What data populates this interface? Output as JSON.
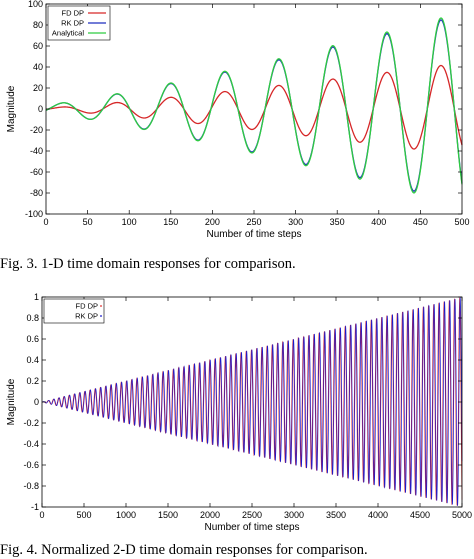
{
  "figures": [
    {
      "caption": "Fig. 3.    1-D time domain responses for comparison.",
      "chart_data": {
        "type": "line",
        "title": "",
        "xlabel": "Number of time steps",
        "ylabel": "Magnitude",
        "xlim": [
          0,
          500
        ],
        "ylim": [
          -100,
          100
        ],
        "xticks": [
          0,
          50,
          100,
          150,
          200,
          250,
          300,
          350,
          400,
          450,
          500
        ],
        "yticks": [
          -100,
          -80,
          -60,
          -40,
          -20,
          0,
          20,
          40,
          60,
          80,
          100
        ],
        "grid": false,
        "legend_position": "top-left",
        "series": [
          {
            "name": "FD DP",
            "color": "#d62728",
            "model": {
              "kind": "growing_sine",
              "period": 65,
              "a0": 1,
              "a1": 43,
              "power": 1.2,
              "phase": 0
            }
          },
          {
            "name": "RK DP",
            "color": "#1f2fbf",
            "model": {
              "kind": "growing_sine",
              "period": 65,
              "a0": 4,
              "a1": 86,
              "power": 1.2,
              "phase": 0
            }
          },
          {
            "name": "Analytical",
            "color": "#2ecc40",
            "model": {
              "kind": "growing_sine",
              "period": 65,
              "a0": 4,
              "a1": 88,
              "power": 1.2,
              "phase": 0
            }
          }
        ],
        "peaks": [
          {
            "x": 20,
            "FD DP": 3,
            "RK DP": 5,
            "Analytical": 5
          },
          {
            "x": 85,
            "FD DP": 7,
            "RK DP": 16,
            "Analytical": 17
          },
          {
            "x": 150,
            "FD DP": 13,
            "RK DP": 31,
            "Analytical": 32
          },
          {
            "x": 215,
            "FD DP": 20,
            "RK DP": 47,
            "Analytical": 48
          },
          {
            "x": 280,
            "FD DP": 27,
            "RK DP": 62,
            "Analytical": 63
          },
          {
            "x": 345,
            "FD DP": 33,
            "RK DP": 76,
            "Analytical": 77
          },
          {
            "x": 410,
            "FD DP": 38,
            "RK DP": 87,
            "Analytical": 88
          },
          {
            "x": 480,
            "FD DP": 42,
            "RK DP": 96,
            "Analytical": 97
          }
        ]
      }
    },
    {
      "caption": "Fig. 4.    Normalized 2-D time domain responses for comparison.",
      "chart_data": {
        "type": "line",
        "title": "",
        "xlabel": "Number of time steps",
        "ylabel": "Magnitude",
        "xlim": [
          0,
          5000
        ],
        "ylim": [
          -1,
          1
        ],
        "xticks": [
          0,
          500,
          1000,
          1500,
          2000,
          2500,
          3000,
          3500,
          4000,
          4500,
          5000
        ],
        "yticks": [
          -1,
          -0.8,
          -0.6,
          -0.4,
          -0.2,
          0,
          0.2,
          0.4,
          0.6,
          0.8,
          1
        ],
        "grid": false,
        "legend_position": "top-left",
        "series": [
          {
            "name": "FD DP",
            "color": "#e03030",
            "model": {
              "kind": "growing_sine",
              "period": 62,
              "a0": 0,
              "a1": 1,
              "power": 1,
              "phase": 0.6
            }
          },
          {
            "name": "RK DP",
            "color": "#1a1acc",
            "model": {
              "kind": "growing_sine",
              "period": 62,
              "a0": 0,
              "a1": 1,
              "power": 1,
              "phase": 0
            }
          }
        ],
        "envelope": {
          "x": [
            0,
            5000
          ],
          "amplitude": [
            0,
            1
          ]
        }
      }
    }
  ]
}
